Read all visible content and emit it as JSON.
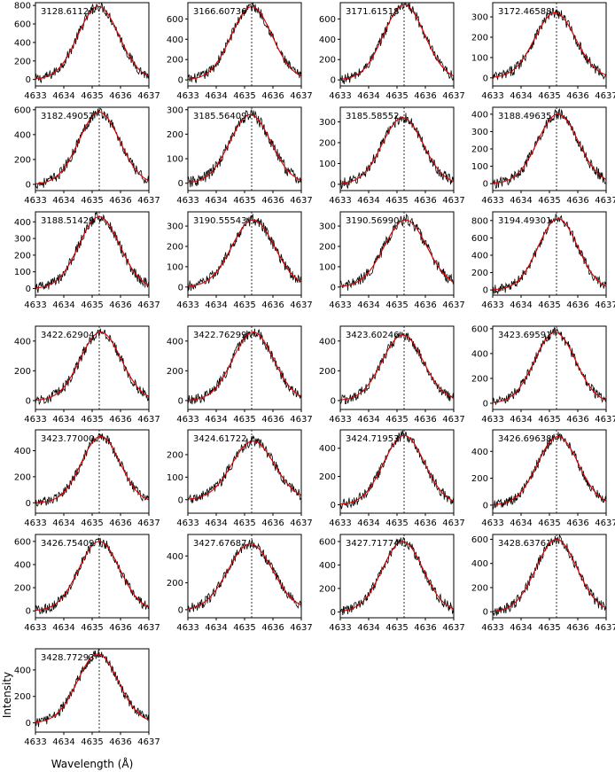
{
  "figure": {
    "xlabel": "Wavelength (Å)",
    "ylabel": "Intensity"
  },
  "colors": {
    "data": "#000000",
    "fit": "#e00000"
  },
  "chart_data": [
    {
      "type": "line",
      "label": "3128.61124",
      "x": [
        4633,
        4634,
        4635,
        4636,
        4637
      ],
      "xlim": [
        4633,
        4637
      ],
      "ylim": [
        -70,
        830
      ],
      "yticks": [
        0,
        200,
        400,
        600,
        800
      ],
      "peak": 790,
      "center": 4635.22,
      "sigma": 0.72,
      "ref_line": 4635.25,
      "series": [
        {
          "values_desc": "observed"
        },
        {
          "values_desc": "fit"
        }
      ]
    },
    {
      "type": "line",
      "label": "3166.60736",
      "xlim": [
        4633,
        4637
      ],
      "ylim": [
        -60,
        760
      ],
      "yticks": [
        0,
        200,
        400,
        600
      ],
      "peak": 720,
      "center": 4635.25,
      "sigma": 0.72,
      "ref_line": 4635.25
    },
    {
      "type": "line",
      "label": "3171.61518",
      "xlim": [
        4633,
        4637
      ],
      "ylim": [
        -60,
        760
      ],
      "yticks": [
        0,
        200,
        400,
        600
      ],
      "peak": 740,
      "center": 4635.25,
      "sigma": 0.72,
      "ref_line": 4635.25
    },
    {
      "type": "line",
      "label": "3172.46588",
      "xlim": [
        4633,
        4637
      ],
      "ylim": [
        -40,
        370
      ],
      "yticks": [
        0,
        100,
        200,
        300
      ],
      "peak": 320,
      "center": 4635.2,
      "sigma": 0.72,
      "ref_line": 4635.25
    },
    {
      "type": "line",
      "label": "3182.49052",
      "xlim": [
        4633,
        4637
      ],
      "ylim": [
        -50,
        620
      ],
      "yticks": [
        0,
        200,
        400,
        600
      ],
      "peak": 580,
      "center": 4635.25,
      "sigma": 0.72,
      "ref_line": 4635.25
    },
    {
      "type": "line",
      "label": "3185.56409",
      "xlim": [
        4633,
        4637
      ],
      "ylim": [
        -30,
        310
      ],
      "yticks": [
        0,
        100,
        200,
        300
      ],
      "peak": 280,
      "center": 4635.2,
      "sigma": 0.72,
      "ref_line": 4635.25
    },
    {
      "type": "line",
      "label": "3185.58552",
      "xlim": [
        4633,
        4637
      ],
      "ylim": [
        -30,
        370
      ],
      "yticks": [
        0,
        100,
        200,
        300
      ],
      "peak": 320,
      "center": 4635.2,
      "sigma": 0.72,
      "ref_line": 4635.25
    },
    {
      "type": "line",
      "label": "3188.49635",
      "xlim": [
        4633,
        4637
      ],
      "ylim": [
        -40,
        440
      ],
      "yticks": [
        0,
        100,
        200,
        300,
        400
      ],
      "peak": 400,
      "center": 4635.3,
      "sigma": 0.72,
      "ref_line": 4635.25
    },
    {
      "type": "line",
      "label": "3188.51429",
      "xlim": [
        4633,
        4637
      ],
      "ylim": [
        -40,
        460
      ],
      "yticks": [
        0,
        100,
        200,
        300,
        400
      ],
      "peak": 430,
      "center": 4635.25,
      "sigma": 0.72,
      "ref_line": 4635.25
    },
    {
      "type": "line",
      "label": "3190.55543",
      "xlim": [
        4633,
        4637
      ],
      "ylim": [
        -40,
        370
      ],
      "yticks": [
        0,
        100,
        200,
        300
      ],
      "peak": 330,
      "center": 4635.3,
      "sigma": 0.75,
      "ref_line": 4635.25
    },
    {
      "type": "line",
      "label": "3190.56990",
      "xlim": [
        4633,
        4637
      ],
      "ylim": [
        -40,
        370
      ],
      "yticks": [
        0,
        100,
        200,
        300
      ],
      "peak": 330,
      "center": 4635.3,
      "sigma": 0.75,
      "ref_line": 4635.25
    },
    {
      "type": "line",
      "label": "3194.49301",
      "xlim": [
        4633,
        4637
      ],
      "ylim": [
        -60,
        900
      ],
      "yticks": [
        0,
        200,
        400,
        600,
        800
      ],
      "peak": 820,
      "center": 4635.3,
      "sigma": 0.7,
      "ref_line": 4635.25
    },
    {
      "type": "line",
      "label": "3422.62904",
      "xlim": [
        4633,
        4637
      ],
      "ylim": [
        -60,
        500
      ],
      "yticks": [
        0,
        200,
        400
      ],
      "peak": 460,
      "center": 4635.3,
      "sigma": 0.72,
      "ref_line": 4635.25
    },
    {
      "type": "line",
      "label": "3422.76299",
      "xlim": [
        4633,
        4637
      ],
      "ylim": [
        -60,
        500
      ],
      "yticks": [
        0,
        200,
        400
      ],
      "peak": 460,
      "center": 4635.3,
      "sigma": 0.72,
      "ref_line": 4635.25
    },
    {
      "type": "line",
      "label": "3423.60246",
      "xlim": [
        4633,
        4637
      ],
      "ylim": [
        -60,
        500
      ],
      "yticks": [
        0,
        200,
        400
      ],
      "peak": 440,
      "center": 4635.2,
      "sigma": 0.72,
      "ref_line": 4635.25
    },
    {
      "type": "line",
      "label": "3423.69591",
      "xlim": [
        4633,
        4637
      ],
      "ylim": [
        -50,
        620
      ],
      "yticks": [
        0,
        200,
        400,
        600
      ],
      "peak": 570,
      "center": 4635.2,
      "sigma": 0.72,
      "ref_line": 4635.25
    },
    {
      "type": "line",
      "label": "3423.77000",
      "xlim": [
        4633,
        4637
      ],
      "ylim": [
        -80,
        560
      ],
      "yticks": [
        0,
        200,
        400
      ],
      "peak": 510,
      "center": 4635.3,
      "sigma": 0.68,
      "ref_line": 4635.25
    },
    {
      "type": "line",
      "label": "3424.61722",
      "xlim": [
        4633,
        4637
      ],
      "ylim": [
        -60,
        310
      ],
      "yticks": [
        0,
        100,
        200
      ],
      "peak": 260,
      "center": 4635.3,
      "sigma": 0.75,
      "ref_line": 4635.25
    },
    {
      "type": "line",
      "label": "3424.71953",
      "xlim": [
        4633,
        4637
      ],
      "ylim": [
        -60,
        530
      ],
      "yticks": [
        0,
        200,
        400
      ],
      "peak": 490,
      "center": 4635.25,
      "sigma": 0.72,
      "ref_line": 4635.25
    },
    {
      "type": "line",
      "label": "3426.69638",
      "xlim": [
        4633,
        4637
      ],
      "ylim": [
        -60,
        560
      ],
      "yticks": [
        0,
        200,
        400
      ],
      "peak": 510,
      "center": 4635.3,
      "sigma": 0.72,
      "ref_line": 4635.25
    },
    {
      "type": "line",
      "label": "3426.75409",
      "xlim": [
        4633,
        4637
      ],
      "ylim": [
        -60,
        660
      ],
      "yticks": [
        0,
        200,
        400,
        600
      ],
      "peak": 600,
      "center": 4635.25,
      "sigma": 0.72,
      "ref_line": 4635.25
    },
    {
      "type": "line",
      "label": "3427.67687",
      "xlim": [
        4633,
        4637
      ],
      "ylim": [
        -60,
        560
      ],
      "yticks": [
        0,
        200,
        400
      ],
      "peak": 490,
      "center": 4635.2,
      "sigma": 0.78,
      "ref_line": 4635.25
    },
    {
      "type": "line",
      "label": "3427.71774",
      "xlim": [
        4633,
        4637
      ],
      "ylim": [
        -50,
        660
      ],
      "yticks": [
        0,
        200,
        400,
        600
      ],
      "peak": 600,
      "center": 4635.2,
      "sigma": 0.72,
      "ref_line": 4635.25
    },
    {
      "type": "line",
      "label": "3428.63761",
      "xlim": [
        4633,
        4637
      ],
      "ylim": [
        -50,
        640
      ],
      "yticks": [
        0,
        200,
        400,
        600
      ],
      "peak": 600,
      "center": 4635.25,
      "sigma": 0.72,
      "ref_line": 4635.25
    },
    {
      "type": "line",
      "label": "3428.77293",
      "xlim": [
        4633,
        4637
      ],
      "ylim": [
        -70,
        560
      ],
      "yticks": [
        0,
        200,
        400
      ],
      "peak": 520,
      "center": 4635.2,
      "sigma": 0.72,
      "ref_line": 4635.25
    }
  ],
  "xticks": [
    4633,
    4634,
    4635,
    4636,
    4637
  ]
}
